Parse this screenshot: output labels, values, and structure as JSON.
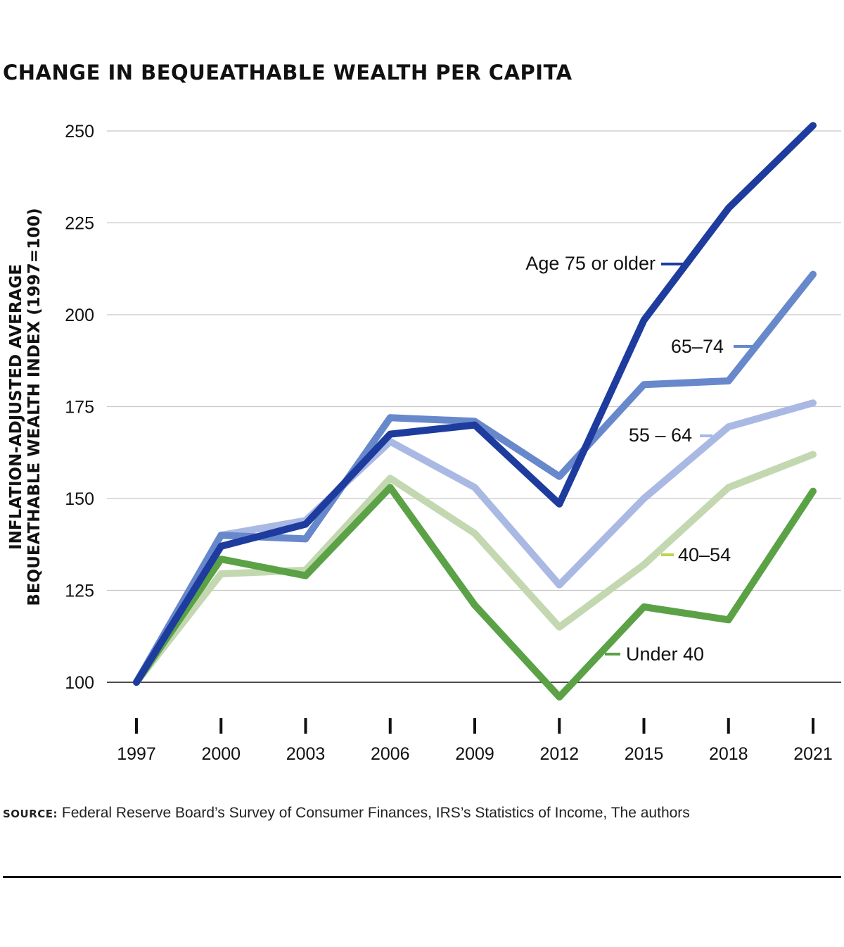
{
  "chart_data": {
    "type": "line",
    "title": "CHANGE IN BEQUEATHABLE WEALTH PER CAPITA",
    "ylabel_lines": [
      "INFLATION-ADJUSTED AVERAGE",
      "BEQUEATHABLE WEALTH INDEX (1997=100)"
    ],
    "xlabel": "",
    "x": [
      "1997",
      "2000",
      "2003",
      "2006",
      "2009",
      "2012",
      "2015",
      "2018",
      "2021"
    ],
    "ylim": [
      100,
      250
    ],
    "yticks": [
      100,
      125,
      150,
      175,
      200,
      225,
      250
    ],
    "grid": true,
    "series": [
      {
        "name": "40–54",
        "color": "#c3d8b0",
        "values": [
          100,
          129.5,
          130.5,
          155.5,
          140.5,
          115,
          132,
          153,
          162
        ]
      },
      {
        "name": "Under 40",
        "color": "#5ba246",
        "values": [
          100,
          133.5,
          129,
          153,
          121,
          96,
          120.5,
          117,
          152
        ]
      },
      {
        "name": "55 – 64",
        "color": "#aab9e3",
        "values": [
          100,
          140,
          144,
          165.5,
          153,
          126.5,
          150,
          169.5,
          176
        ]
      },
      {
        "name": "65–74",
        "color": "#6888cc",
        "values": [
          100,
          140,
          139,
          172,
          171,
          156,
          181,
          182,
          211
        ]
      },
      {
        "name": "Age 75 or older",
        "color": "#1e3c9e",
        "values": [
          100,
          137,
          143,
          167.5,
          170,
          148.5,
          198.5,
          229,
          251.5
        ]
      }
    ]
  },
  "source": {
    "label": "SOURCE:",
    "text": "Federal Reserve Board’s Survey of Consumer Finances, IRS’s Statistics of Income, The authors"
  }
}
